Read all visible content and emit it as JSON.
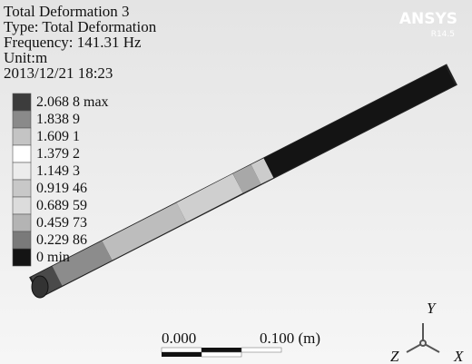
{
  "header": {
    "lines": [
      "Total Deformation 3",
      "Type: Total Deformation",
      "Frequency: 141.31 Hz",
      "Unit:m",
      "2013/12/21 18:23"
    ]
  },
  "legend": {
    "entries": [
      {
        "label": "2.068 8 max",
        "color": "#3c3c3c"
      },
      {
        "label": "1.838 9",
        "color": "#8a8a8a"
      },
      {
        "label": "1.609 1",
        "color": "#c4c4c4"
      },
      {
        "label": "1.379 2",
        "color": "#ffffff"
      },
      {
        "label": "1.149 3",
        "color": "#ececec"
      },
      {
        "label": "0.919 46",
        "color": "#c8c8c8"
      },
      {
        "label": "0.689 59",
        "color": "#dcdcdc"
      },
      {
        "label": "0.459 73",
        "color": "#b4b4b4"
      },
      {
        "label": "0.229 86",
        "color": "#7a7a7a"
      },
      {
        "label": "0 min",
        "color": "#141414"
      }
    ]
  },
  "scale_bar": {
    "start_label": "0.000",
    "end_label": "0.100 (m)"
  },
  "triad": {
    "x": "X",
    "y": "Y",
    "z": "Z"
  },
  "logo": {
    "name": "ANSYS",
    "version": "R14.5"
  }
}
